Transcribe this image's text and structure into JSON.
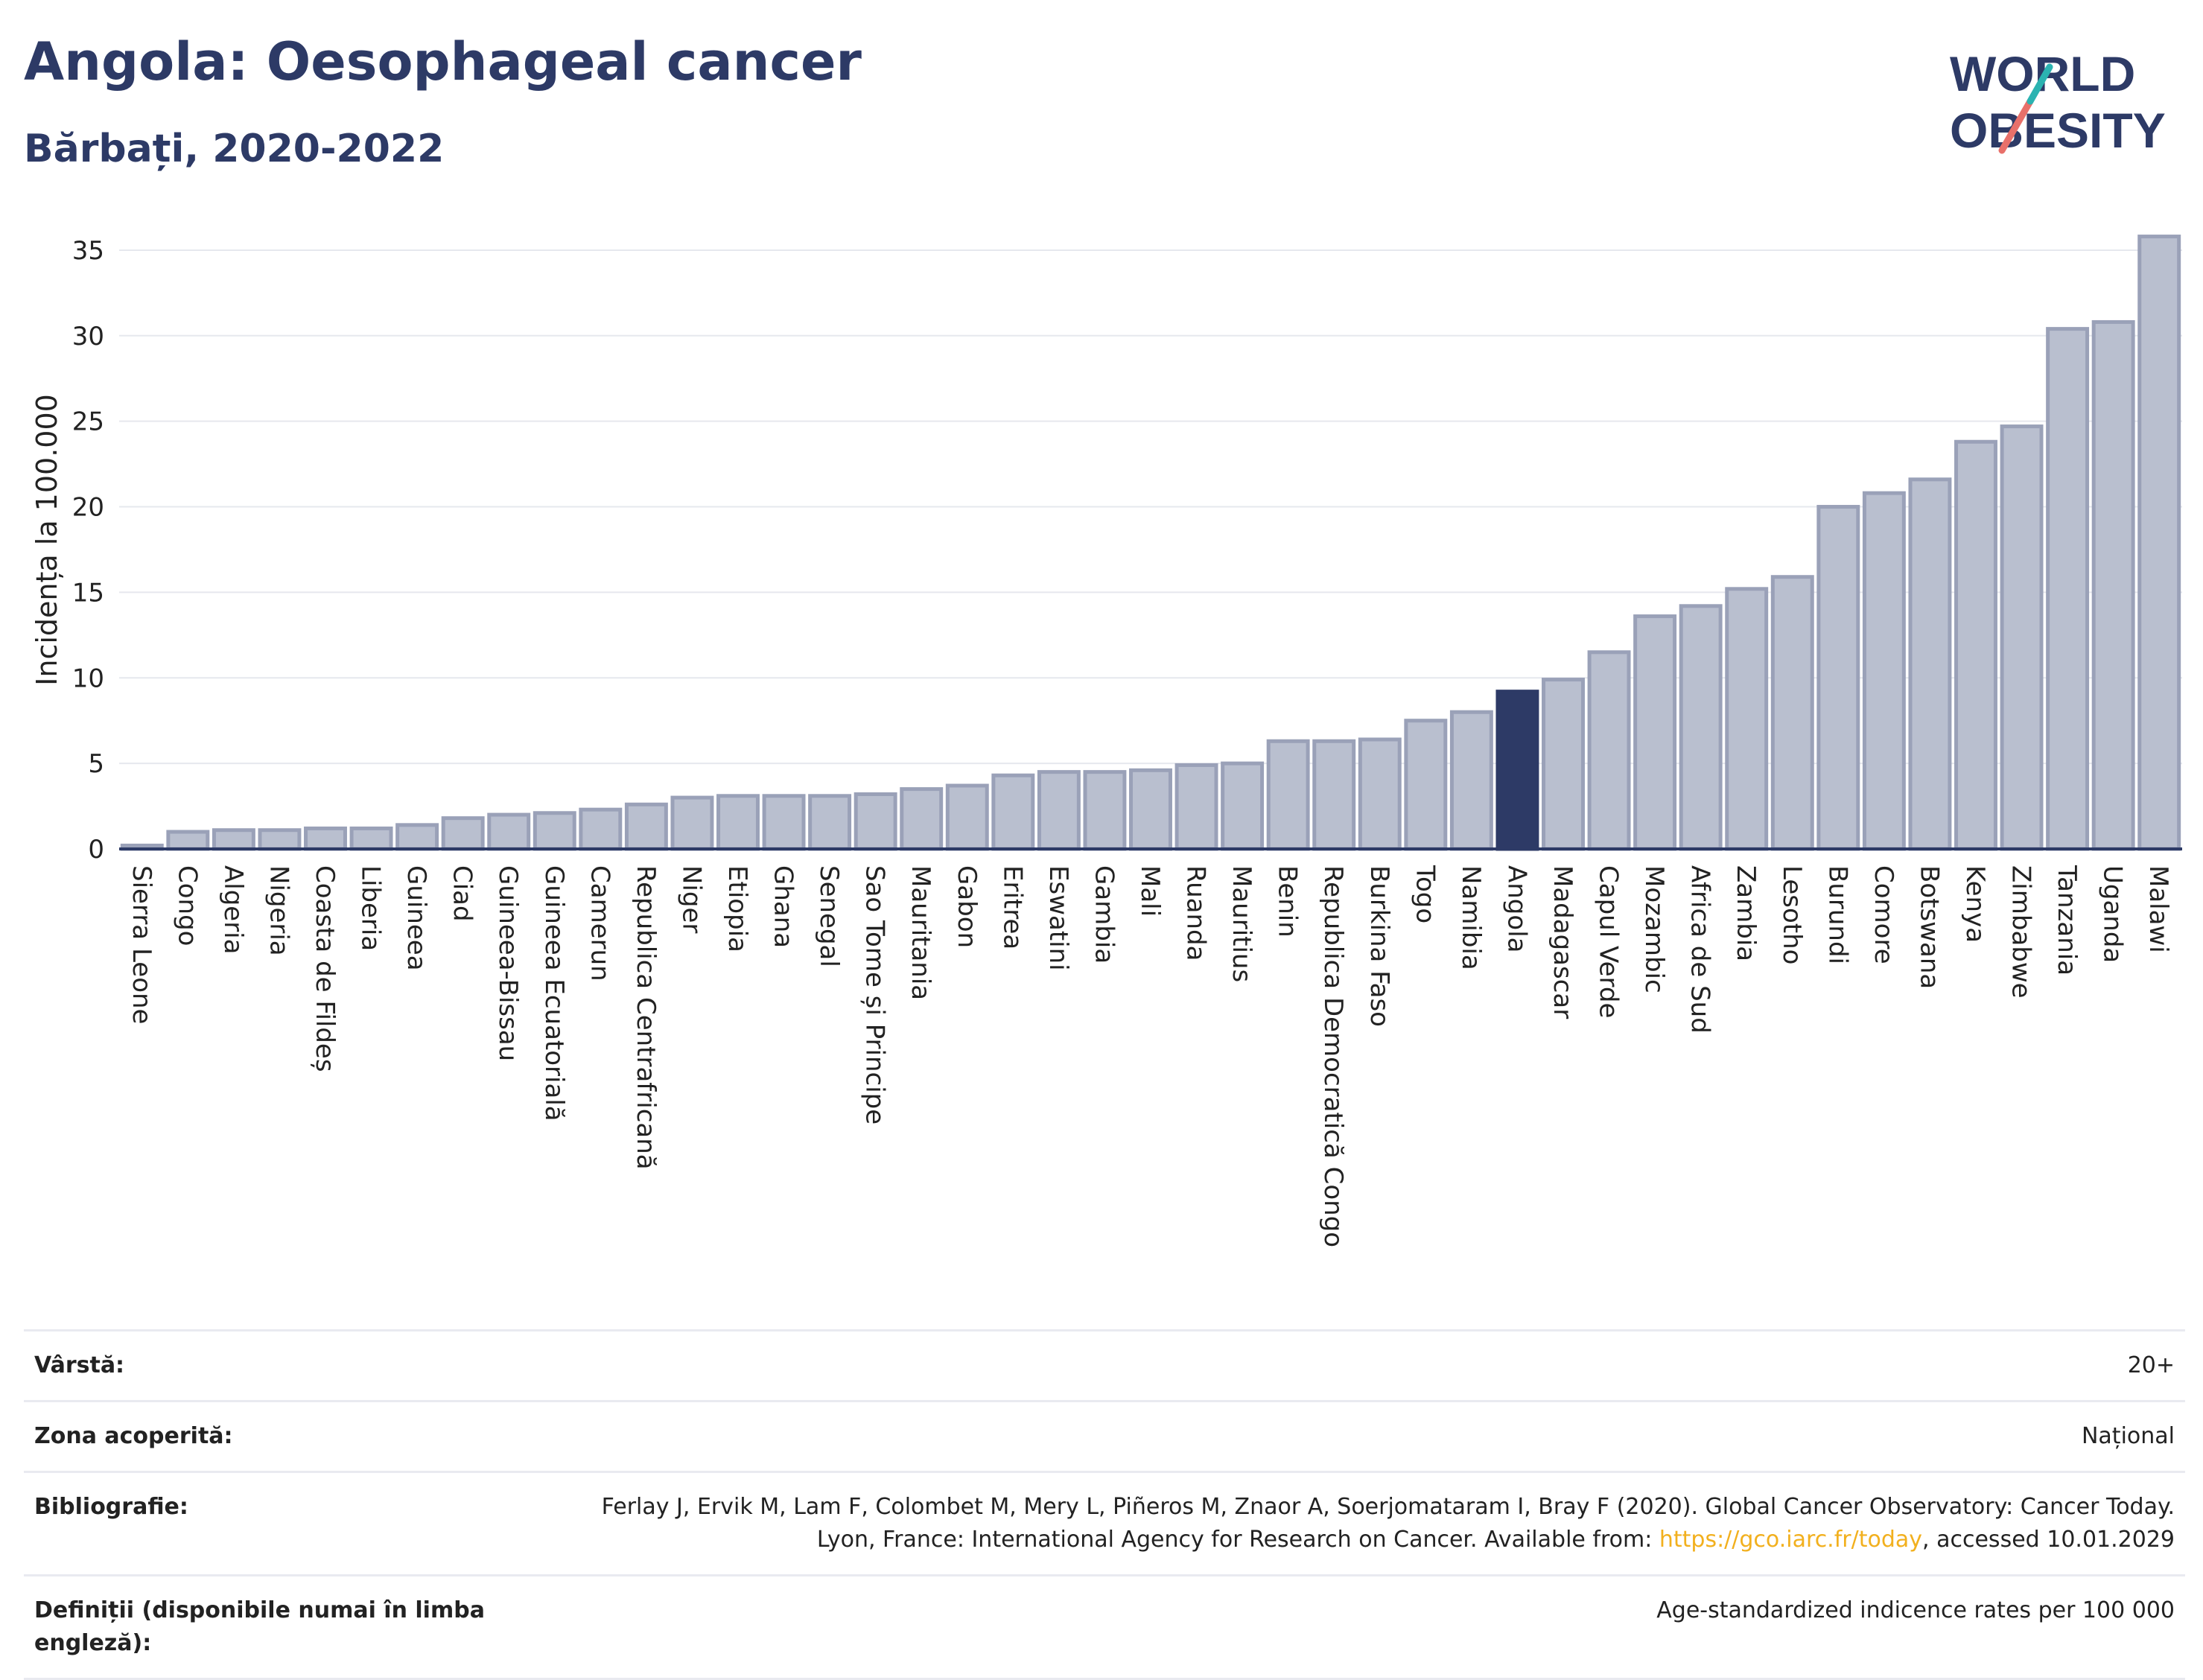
{
  "header": {
    "title": "Angola: Oesophageal cancer",
    "subtitle": "Bărbați, 2020-2022"
  },
  "logo": {
    "line1": "WORLD",
    "line2": "OBESITY"
  },
  "chart_data": {
    "type": "bar",
    "ylabel": "Incidența la 100.000",
    "ylim": [
      0,
      37
    ],
    "yticks": [
      0,
      5,
      10,
      15,
      20,
      25,
      30,
      35
    ],
    "grid": true,
    "highlight": "Angola",
    "colors": {
      "bar": "#b9bfcf",
      "bar_edge": "#9aa1b8",
      "highlight": "#2d3a66",
      "grid": "#e6e8ee"
    },
    "categories": [
      "Sierra Leone",
      "Congo",
      "Algeria",
      "Nigeria",
      "Coasta de Fildeș",
      "Liberia",
      "Guineea",
      "Ciad",
      "Guineea-Bissau",
      "Guineea Ecuatorială",
      "Camerun",
      "Republica Centrafricană",
      "Niger",
      "Etiopia",
      "Ghana",
      "Senegal",
      "Sao Tome și Principe",
      "Mauritania",
      "Gabon",
      "Eritrea",
      "Eswatini",
      "Gambia",
      "Mali",
      "Ruanda",
      "Mauritius",
      "Benin",
      "Republica Democratică Congo",
      "Burkina Faso",
      "Togo",
      "Namibia",
      "Angola",
      "Madagascar",
      "Capul Verde",
      "Mozambic",
      "Africa de Sud",
      "Zambia",
      "Lesotho",
      "Burundi",
      "Comore",
      "Botswana",
      "Kenya",
      "Zimbabwe",
      "Tanzania",
      "Uganda",
      "Malawi"
    ],
    "values": [
      0.2,
      1.0,
      1.1,
      1.1,
      1.2,
      1.2,
      1.4,
      1.8,
      2.0,
      2.1,
      2.3,
      2.6,
      3.0,
      3.1,
      3.1,
      3.1,
      3.2,
      3.5,
      3.7,
      4.3,
      4.5,
      4.5,
      4.6,
      4.9,
      5.0,
      6.3,
      6.3,
      6.4,
      7.5,
      8.0,
      9.2,
      9.9,
      11.5,
      13.6,
      14.2,
      15.2,
      15.9,
      20.0,
      20.8,
      21.6,
      23.8,
      24.7,
      30.4,
      30.8,
      35.8
    ]
  },
  "meta": {
    "age_label": "Vârstă:",
    "age_value": "20+",
    "area_label": "Zona acoperită:",
    "area_value": "Național",
    "biblio_label": "Bibliografie:",
    "biblio_text": "Ferlay J, Ervik M, Lam F, Colombet M, Mery L, Piñeros M, Znaor A, Soerjomataram I, Bray F (2020). Global Cancer Observatory: Cancer Today. Lyon, France: International Agency for Research on Cancer. Available from: ",
    "biblio_link": "https://gco.iarc.fr/today",
    "biblio_suffix": ", accessed 10.01.2029",
    "def_label": "Definiții (disponibile numai în limba engleză):",
    "def_value": "Age-standardized indicence rates per 100 000"
  }
}
